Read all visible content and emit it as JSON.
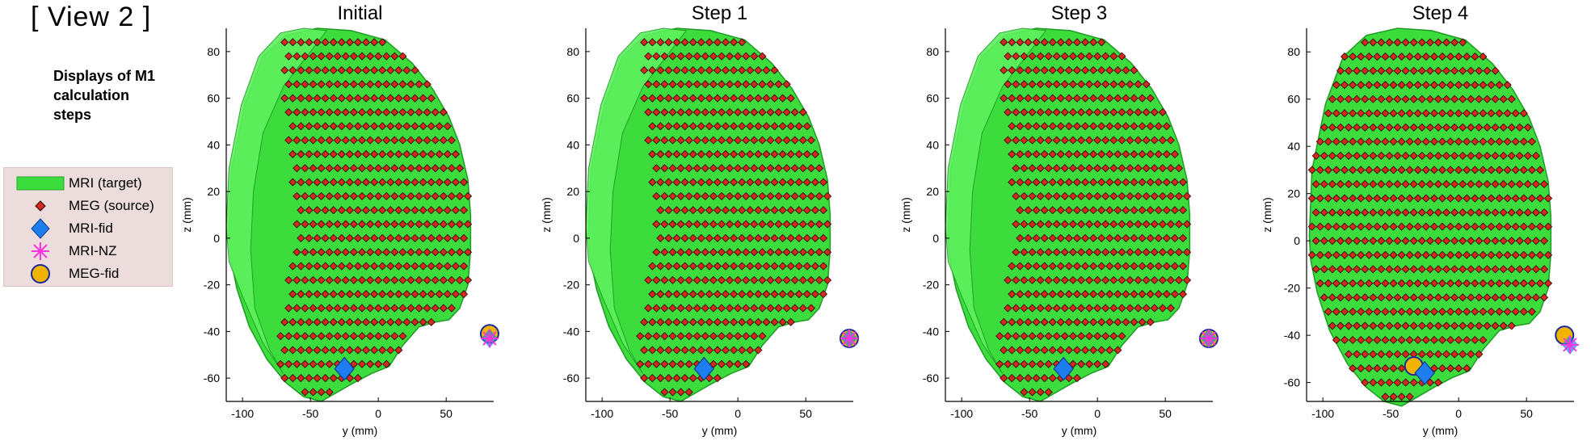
{
  "header": {
    "view_title": "[ View 2 ]",
    "subtitle_lines": [
      "Displays of M1",
      "calculation",
      "steps"
    ]
  },
  "legend": {
    "items": [
      {
        "label": "MRI (target)",
        "icon": "green-band-icon"
      },
      {
        "label": "MEG (source)",
        "icon": "red-diamond-icon"
      },
      {
        "label": "MRI-fid",
        "icon": "blue-diamond-icon"
      },
      {
        "label": "MRI-NZ",
        "icon": "magenta-asterisk-icon"
      },
      {
        "label": "MEG-fid",
        "icon": "gold-circle-icon"
      }
    ]
  },
  "colors": {
    "mri": "#3cdc3c",
    "mri_dark": "#1f9a25",
    "meg": "#d42a1e",
    "meg_edge": "#2a0000",
    "mri_fid": "#1e7ef0",
    "mri_nz": "#ff33dd",
    "meg_fid": "#f0b400",
    "legend_bg": "#ecdcdc"
  },
  "chart_data": [
    {
      "type": "scatter",
      "title": "Initial",
      "xlabel": "y (mm)",
      "ylabel": "z (mm)",
      "xlim": [
        -112,
        85
      ],
      "ylim": [
        -70,
        90
      ],
      "xticks": [
        -100,
        -50,
        0,
        50
      ],
      "yticks": [
        -60,
        -40,
        -20,
        0,
        20,
        40,
        60,
        80
      ],
      "mri_fid": [
        [
          -25,
          -56
        ]
      ],
      "mri_nz": [
        [
          82,
          -43
        ]
      ],
      "meg_fid": [
        [
          82,
          -41
        ]
      ]
    },
    {
      "type": "scatter",
      "title": "Step 1",
      "xlabel": "y (mm)",
      "ylabel": "z (mm)",
      "xlim": [
        -112,
        85
      ],
      "ylim": [
        -70,
        90
      ],
      "xticks": [
        -100,
        -50,
        0,
        50
      ],
      "yticks": [
        -60,
        -40,
        -20,
        0,
        20,
        40,
        60,
        80
      ],
      "mri_fid": [
        [
          -25,
          -56
        ]
      ],
      "mri_nz": [
        [
          82,
          -43
        ]
      ],
      "meg_fid": [
        [
          82,
          -43
        ]
      ]
    },
    {
      "type": "scatter",
      "title": "Step 3",
      "xlabel": "y (mm)",
      "ylabel": "z (mm)",
      "xlim": [
        -112,
        85
      ],
      "ylim": [
        -70,
        90
      ],
      "xticks": [
        -100,
        -50,
        0,
        50
      ],
      "yticks": [
        -60,
        -40,
        -20,
        0,
        20,
        40,
        60,
        80
      ],
      "mri_fid": [
        [
          -25,
          -56
        ]
      ],
      "mri_nz": [
        [
          82,
          -43
        ]
      ],
      "meg_fid": [
        [
          82,
          -43
        ]
      ]
    },
    {
      "type": "scatter",
      "title": "Step 4",
      "xlabel": "y (mm)",
      "ylabel": "z (mm)",
      "xlim": [
        -112,
        85
      ],
      "ylim": [
        -68,
        90
      ],
      "xticks": [
        -100,
        -50,
        0,
        50
      ],
      "yticks": [
        -60,
        -40,
        -20,
        0,
        20,
        40,
        60,
        80
      ],
      "mri_fid": [
        [
          -25,
          -56
        ]
      ],
      "mri_nz": [
        [
          82,
          -44
        ]
      ],
      "meg_fid": [
        [
          -33,
          -53
        ],
        [
          78,
          -40
        ]
      ]
    }
  ]
}
